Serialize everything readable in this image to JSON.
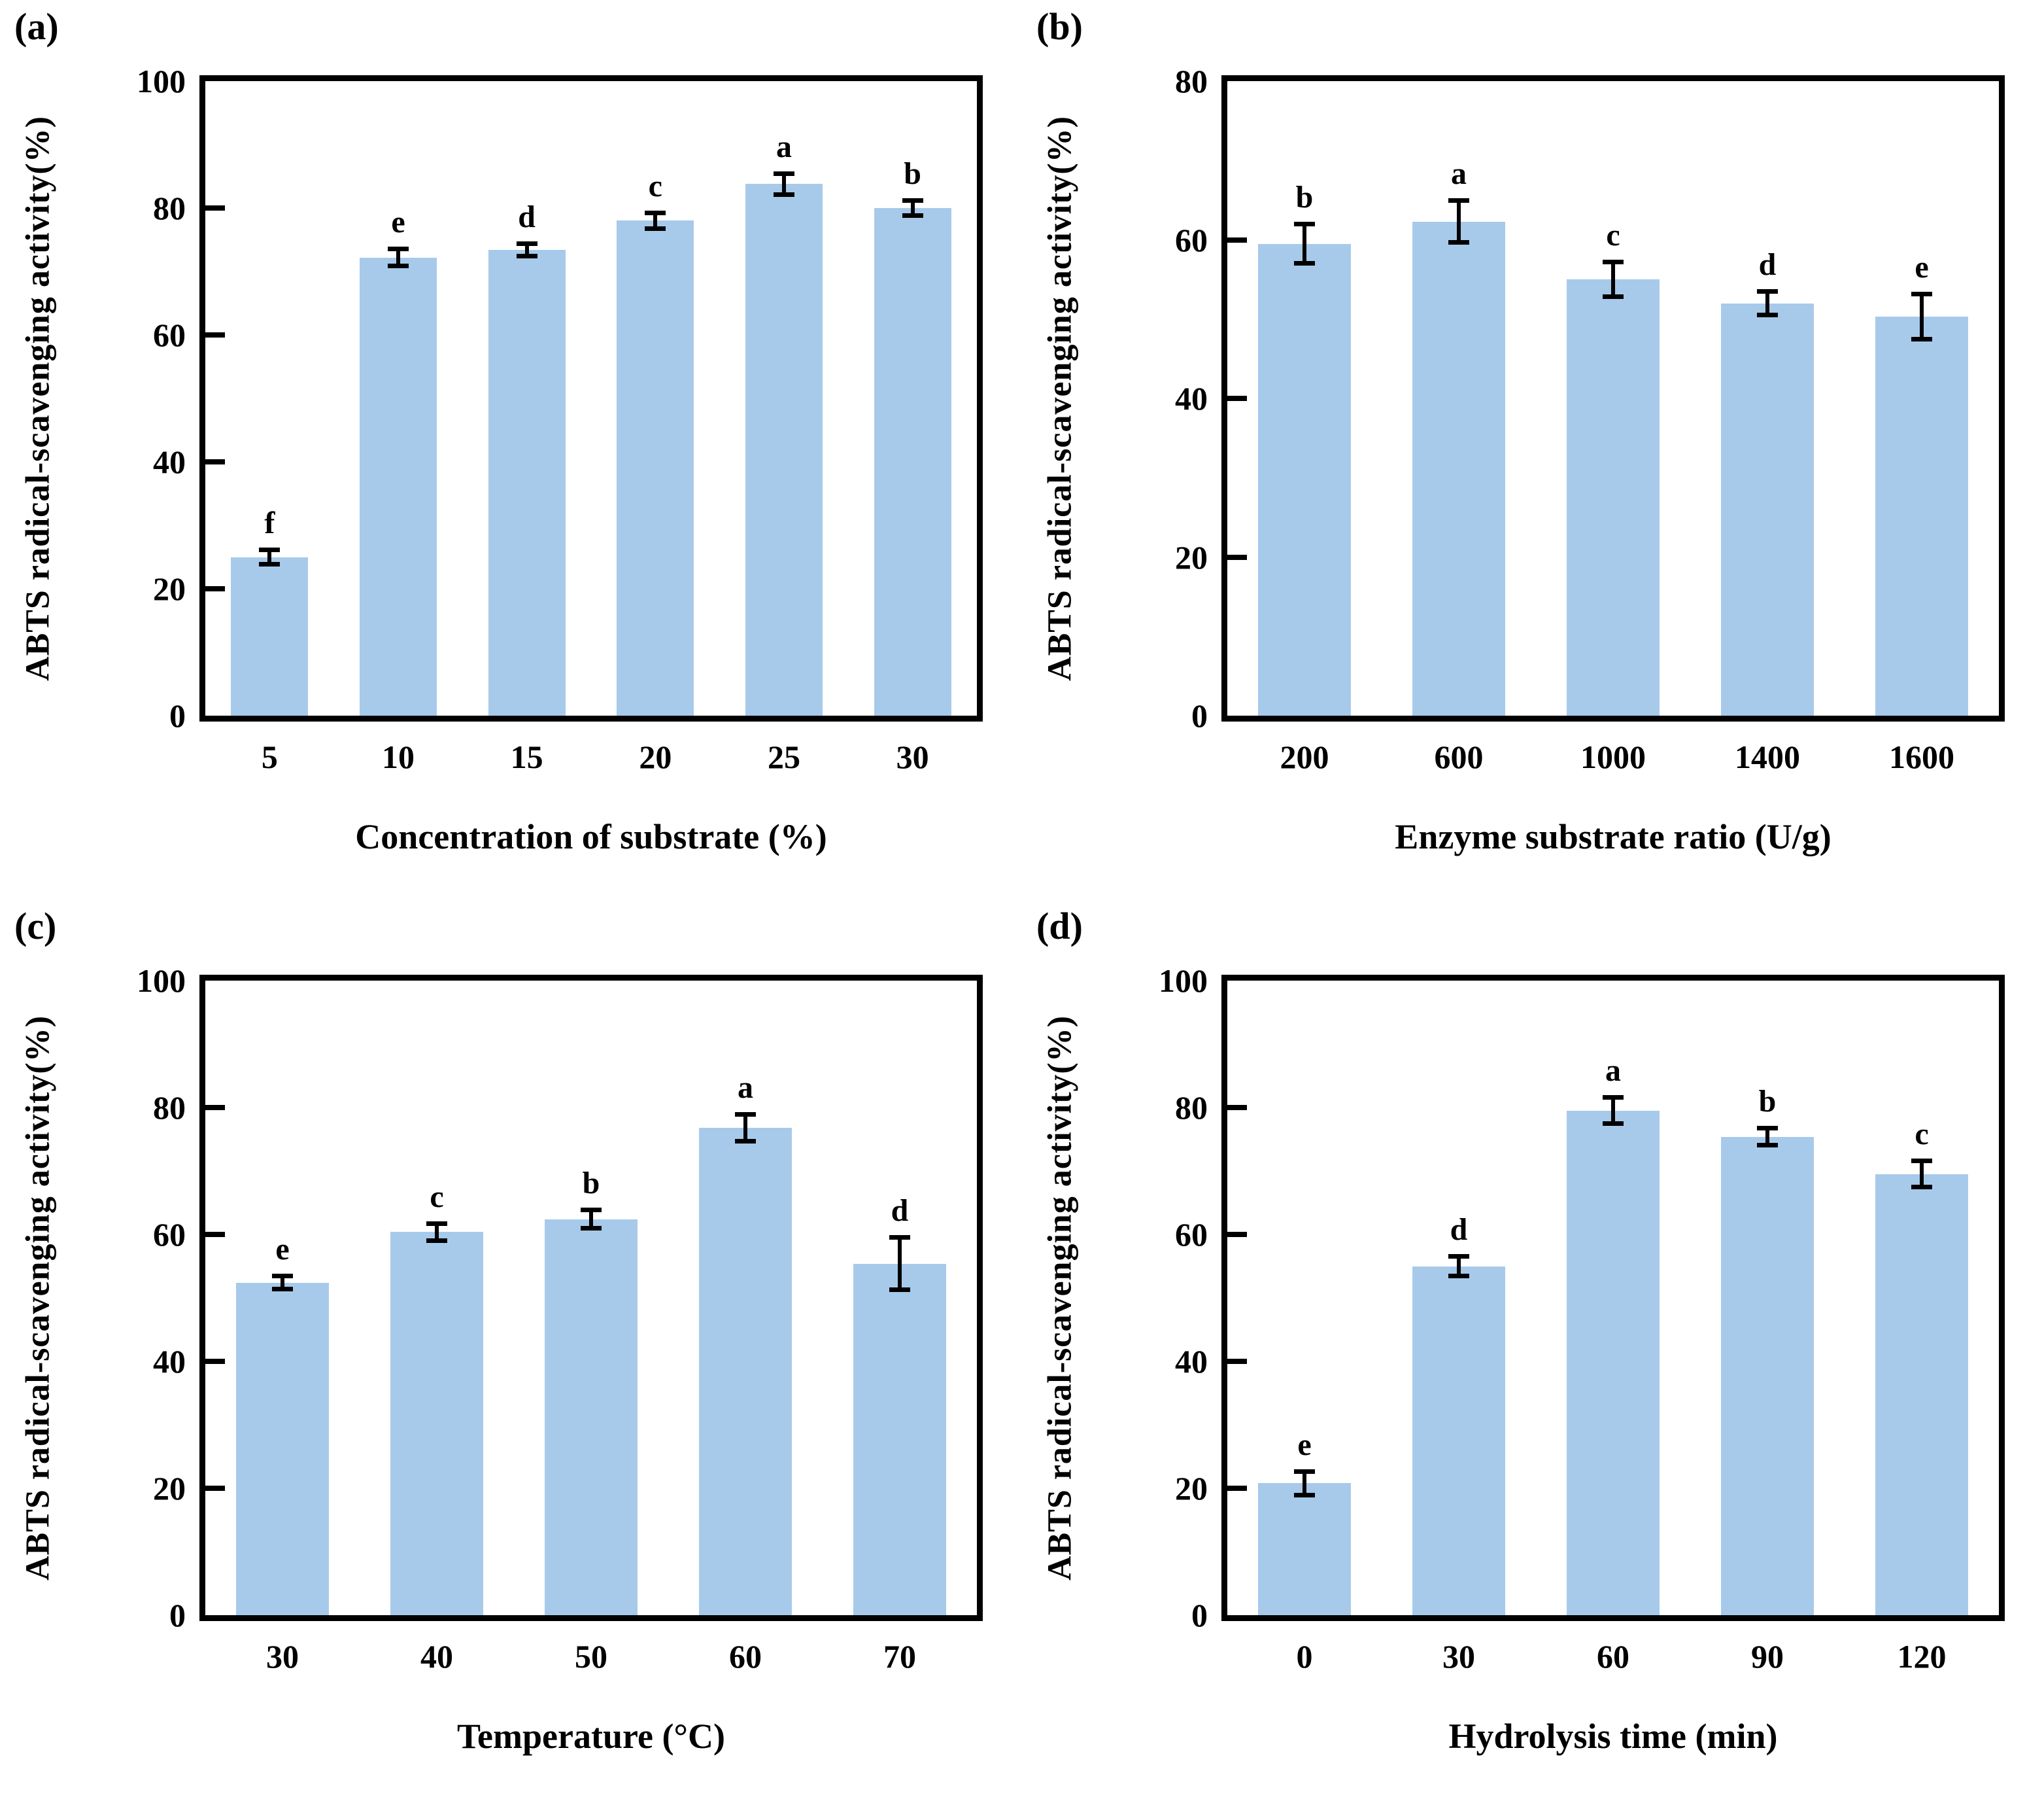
{
  "figure": {
    "background_color": "#ffffff",
    "text_color": "#000000",
    "axis_color": "#000000",
    "bar_fill_color": "#A7CAEB"
  },
  "chart_data": [
    {
      "id": "a",
      "type": "bar",
      "panel_label": "(a)",
      "xlabel": "Concentration of substrate (%)",
      "ylabel": "ABTS radical-scavenging activity(%)",
      "categories": [
        "5",
        "10",
        "15",
        "20",
        "25",
        "30"
      ],
      "values": [
        25.0,
        72.2,
        73.4,
        78.0,
        83.8,
        80.0
      ],
      "errors": [
        1.2,
        1.4,
        1.0,
        1.3,
        1.7,
        1.2
      ],
      "sig_letters": [
        "f",
        "e",
        "d",
        "c",
        "a",
        "b"
      ],
      "ylim": [
        0,
        100
      ],
      "ytick_step": 20,
      "grid": false,
      "legend": "none",
      "bar_color": "#A7CAEB",
      "bar_width_frac": 0.6
    },
    {
      "id": "b",
      "type": "bar",
      "panel_label": "(b)",
      "xlabel": "Enzyme substrate ratio (U/g)",
      "ylabel": "ABTS radical-scavenging activity(%)",
      "categories": [
        "200",
        "600",
        "1000",
        "1400",
        "1600"
      ],
      "values": [
        59.5,
        62.3,
        55.0,
        52.0,
        50.3
      ],
      "errors": [
        2.5,
        2.7,
        2.2,
        1.5,
        2.9
      ],
      "sig_letters": [
        "b",
        "a",
        "c",
        "d",
        "e"
      ],
      "ylim": [
        0,
        80
      ],
      "ytick_step": 20,
      "grid": false,
      "legend": "none",
      "bar_color": "#A7CAEB",
      "bar_width_frac": 0.6
    },
    {
      "id": "c",
      "type": "bar",
      "panel_label": "(c)",
      "xlabel": "Temperature (°C)",
      "ylabel": "ABTS radical-scavenging activity(%)",
      "categories": [
        "30",
        "40",
        "50",
        "60",
        "70"
      ],
      "values": [
        52.4,
        60.4,
        62.4,
        76.8,
        55.4
      ],
      "errors": [
        1.1,
        1.4,
        1.5,
        2.2,
        4.2
      ],
      "sig_letters": [
        "e",
        "c",
        "b",
        "a",
        "d"
      ],
      "ylim": [
        0,
        100
      ],
      "ytick_step": 20,
      "grid": false,
      "legend": "none",
      "bar_color": "#A7CAEB",
      "bar_width_frac": 0.6
    },
    {
      "id": "d",
      "type": "bar",
      "panel_label": "(d)",
      "xlabel": "Hydrolysis time (min)",
      "ylabel": "ABTS radical-scavenging activity(%)",
      "categories": [
        "0",
        "30",
        "60",
        "90",
        "120"
      ],
      "values": [
        20.8,
        55.0,
        79.5,
        75.4,
        69.5
      ],
      "errors": [
        1.9,
        1.6,
        2.1,
        1.4,
        2.1
      ],
      "sig_letters": [
        "e",
        "d",
        "a",
        "b",
        "c"
      ],
      "ylim": [
        0,
        100
      ],
      "ytick_step": 20,
      "grid": false,
      "legend": "none",
      "bar_color": "#A7CAEB",
      "bar_width_frac": 0.6
    }
  ]
}
